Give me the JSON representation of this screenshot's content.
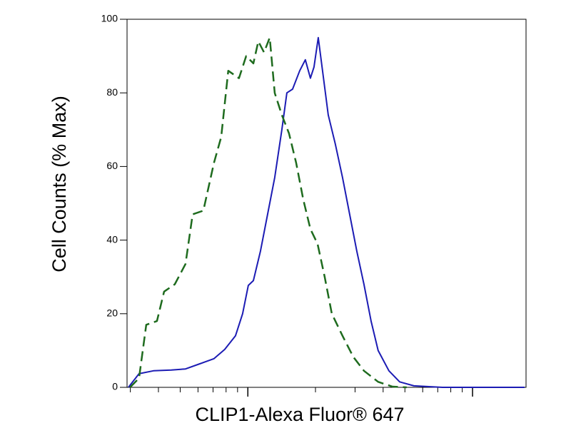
{
  "chart_data": {
    "type": "line",
    "x_label": "CLIP1-Alexa Fluor® 647",
    "y_label": "Cell Counts (% Max)",
    "xscale": "log",
    "xlim": [
      290,
      17300
    ],
    "xticks": [
      1000,
      10000
    ],
    "xminorticks": [
      300,
      400,
      500,
      600,
      700,
      800,
      900,
      2000,
      3000,
      4000,
      5000,
      6000,
      7000,
      8000,
      9000
    ],
    "ylim": [
      0,
      100
    ],
    "yticks": [
      0,
      20,
      40,
      60,
      80,
      100
    ],
    "series": [
      {
        "color": "#1c1cb4",
        "dashed": false,
        "x": [
          294,
          328,
          380,
          456,
          528,
          611,
          707,
          789,
          881,
          948,
          1005,
          1058,
          1138,
          1224,
          1317,
          1417,
          1491,
          1581,
          1701,
          1803,
          1898,
          1970,
          2057,
          2150,
          2280,
          2453,
          2638,
          2838,
          3054,
          3285,
          3535,
          3802,
          4245,
          4738,
          5483,
          7345,
          11397,
          17035
        ],
        "values": [
          0,
          3.7,
          4.5,
          4.7,
          5,
          6.4,
          7.8,
          10.3,
          14,
          20,
          27.7,
          29,
          37,
          47,
          57,
          70,
          80,
          81,
          86,
          89,
          84,
          87,
          95,
          86,
          74,
          66,
          57,
          47,
          37,
          28,
          18,
          10,
          4.5,
          1.5,
          0.4,
          0,
          0,
          0
        ]
      },
      {
        "color": "#1e6b1e",
        "dashed": true,
        "x": [
          299,
          328,
          353,
          394,
          424,
          473,
          528,
          568,
          634,
          707,
          761,
          818,
          913,
          983,
          1058,
          1113,
          1180,
          1251,
          1317,
          1417,
          1524,
          1640,
          1765,
          1898,
          2042,
          2198,
          2364,
          2638,
          2944,
          3285,
          3802,
          4403,
          5093
        ],
        "values": [
          0,
          2.5,
          17,
          18,
          26,
          28,
          33.5,
          47,
          48,
          61,
          68,
          86,
          84,
          90,
          88,
          94,
          91,
          95,
          80,
          74,
          69,
          61,
          51,
          43,
          39,
          30,
          20,
          14,
          8.3,
          4.5,
          1.5,
          0.2,
          0
        ]
      }
    ]
  }
}
